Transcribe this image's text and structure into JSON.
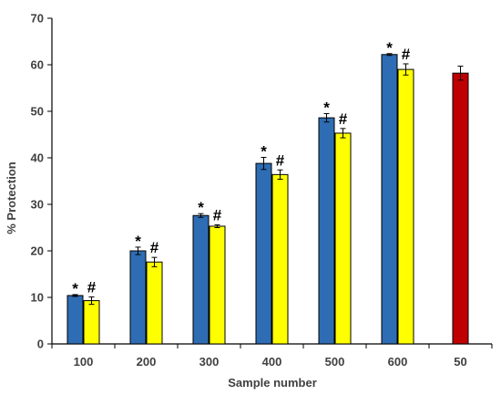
{
  "chart_data": {
    "type": "bar",
    "xlabel": "Sample number",
    "ylabel": "% Protection",
    "ylim": [
      0,
      70
    ],
    "yticks": [
      0,
      10,
      20,
      30,
      40,
      50,
      60,
      70
    ],
    "grid": false,
    "legend": "none",
    "categories": [
      "100",
      "200",
      "300",
      "400",
      "500",
      "600",
      "50"
    ],
    "series": [
      {
        "color": "#2E6DB4",
        "values": [
          10.4,
          20.0,
          27.6,
          38.8,
          48.6,
          62.2,
          null
        ],
        "errors": [
          0.2,
          0.8,
          0.4,
          1.3,
          0.9,
          0.2,
          null
        ],
        "marks": [
          "*",
          "*",
          "*",
          "*",
          "*",
          "*",
          null
        ]
      },
      {
        "color": "#FFFF00",
        "values": [
          9.3,
          17.6,
          25.3,
          36.4,
          45.3,
          59.0,
          null
        ],
        "errors": [
          0.8,
          1.0,
          0.3,
          1.0,
          1.0,
          1.2,
          null
        ],
        "marks": [
          "#",
          "#",
          "#",
          "#",
          "#",
          "#",
          null
        ]
      },
      {
        "color": "#C00000",
        "values": [
          null,
          null,
          null,
          null,
          null,
          null,
          58.2
        ],
        "errors": [
          null,
          null,
          null,
          null,
          null,
          null,
          1.5
        ],
        "marks": [
          null,
          null,
          null,
          null,
          null,
          null,
          null
        ]
      }
    ]
  }
}
